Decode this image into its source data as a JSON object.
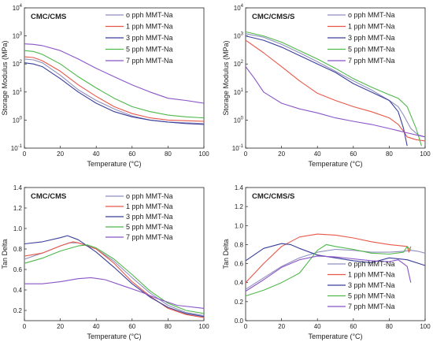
{
  "chart_data": [
    {
      "type": "line",
      "title": "CMC/CMS",
      "xlabel": "Temperature (°C)",
      "ylabel": "Storage Modulus (MPa)",
      "xlim": [
        0,
        100
      ],
      "ylim": [
        0.1,
        10000
      ],
      "yscale": "log",
      "xticks": [
        "0",
        "20",
        "40",
        "60",
        "80",
        "100"
      ],
      "yticks": [
        "10-1",
        "100",
        "101",
        "102",
        "103",
        "104"
      ],
      "legend_position": "top-right",
      "series": [
        {
          "name": "o pph MMT-Na",
          "color": "#8f8fbf",
          "x": [
            0,
            5,
            10,
            20,
            30,
            40,
            50,
            60,
            70,
            80,
            90,
            100
          ],
          "y": [
            150,
            140,
            110,
            40,
            12,
            5,
            2.5,
            1.4,
            1.0,
            0.85,
            0.8,
            0.75
          ]
        },
        {
          "name": "1 pph MMT-Na",
          "color": "#e8584a",
          "x": [
            0,
            5,
            10,
            20,
            30,
            40,
            50,
            60,
            70,
            80,
            90,
            100
          ],
          "y": [
            180,
            170,
            130,
            55,
            18,
            7,
            3,
            1.7,
            1.2,
            1.0,
            0.95,
            0.9
          ]
        },
        {
          "name": "3 pph MMT-Na",
          "color": "#3a3f9a",
          "x": [
            0,
            5,
            10,
            20,
            30,
            40,
            50,
            60,
            70,
            80,
            90,
            100
          ],
          "y": [
            110,
            100,
            80,
            30,
            10,
            4,
            2,
            1.3,
            1.0,
            0.85,
            0.75,
            0.7
          ]
        },
        {
          "name": "5 pph MMT-Na",
          "color": "#4fb84a",
          "x": [
            0,
            5,
            10,
            20,
            30,
            40,
            50,
            60,
            70,
            80,
            90,
            100
          ],
          "y": [
            300,
            280,
            220,
            100,
            35,
            14,
            6,
            3,
            2,
            1.5,
            1.3,
            1.2
          ]
        },
        {
          "name": "7 pph MMT-Na",
          "color": "#8a55c7",
          "x": [
            0,
            5,
            10,
            20,
            30,
            40,
            50,
            60,
            70,
            80,
            90,
            100
          ],
          "y": [
            520,
            500,
            450,
            300,
            150,
            70,
            35,
            18,
            10,
            6,
            5,
            4
          ]
        }
      ]
    },
    {
      "type": "line",
      "title": "CMC/CMS/S",
      "xlabel": "Temperature (°C)",
      "ylabel": "Storage Modulus (MPa)",
      "xlim": [
        0,
        100
      ],
      "ylim": [
        0.1,
        10000
      ],
      "yscale": "log",
      "xticks": [
        "0",
        "20",
        "40",
        "60",
        "80",
        "100"
      ],
      "yticks": [
        "10-1",
        "100",
        "101",
        "102",
        "103",
        "104"
      ],
      "legend_position": "top-right",
      "series": [
        {
          "name": "o pph MMT-Na",
          "color": "#8f8fbf",
          "x": [
            0,
            10,
            20,
            30,
            40,
            50,
            60,
            70,
            80,
            85,
            88,
            92,
            96,
            100
          ],
          "y": [
            1200,
            900,
            500,
            250,
            120,
            55,
            25,
            12,
            5,
            3,
            1.5,
            0.5,
            0.3,
            0.25
          ]
        },
        {
          "name": "1 pph MMT-Na",
          "color": "#e8584a",
          "x": [
            0,
            10,
            20,
            30,
            40,
            50,
            60,
            70,
            80,
            85,
            88,
            90,
            95,
            100
          ],
          "y": [
            700,
            250,
            80,
            25,
            9,
            5,
            3,
            2,
            1.2,
            0.7,
            0.4,
            0.25,
            0.2,
            0.18
          ]
        },
        {
          "name": "3 pph MMT-Na",
          "color": "#3a3f9a",
          "x": [
            0,
            10,
            20,
            30,
            40,
            50,
            60,
            70,
            80,
            85,
            88,
            90
          ],
          "y": [
            1000,
            700,
            400,
            200,
            100,
            50,
            20,
            10,
            5,
            2,
            0.5,
            0.12
          ]
        },
        {
          "name": "5 pph MMT-Na",
          "color": "#4fb84a",
          "x": [
            0,
            10,
            20,
            30,
            40,
            50,
            60,
            70,
            80,
            85,
            90,
            95,
            98
          ],
          "y": [
            1400,
            1000,
            600,
            300,
            150,
            70,
            30,
            15,
            8,
            6,
            3,
            0.5,
            0.12
          ]
        },
        {
          "name": "7 pph MMT-Na",
          "color": "#8a55c7",
          "x": [
            0,
            5,
            10,
            20,
            30,
            40,
            50,
            60,
            70,
            80,
            90,
            100
          ],
          "y": [
            80,
            30,
            10,
            4,
            2.5,
            1.8,
            1.2,
            0.9,
            0.7,
            0.5,
            0.35,
            0.25
          ]
        }
      ]
    },
    {
      "type": "line",
      "title": "CMC/CMS",
      "xlabel": "Temperature (°C)",
      "ylabel": "Tan Delta",
      "xlim": [
        0,
        100
      ],
      "ylim": [
        0.1,
        1.4
      ],
      "xticks": [
        "0",
        "20",
        "40",
        "60",
        "80",
        "100"
      ],
      "yticks": [
        "0.2",
        "0.4",
        "0.6",
        "0.8",
        "1.0",
        "1.2",
        "1.4"
      ],
      "legend_position": "top-right",
      "series": [
        {
          "name": "o pph MMT-Na",
          "color": "#8f8fbf",
          "x": [
            0,
            10,
            20,
            25,
            30,
            40,
            50,
            60,
            70,
            80,
            90,
            100
          ],
          "y": [
            0.7,
            0.76,
            0.83,
            0.86,
            0.86,
            0.8,
            0.68,
            0.52,
            0.37,
            0.25,
            0.18,
            0.15
          ]
        },
        {
          "name": "1 pph MMT-Na",
          "color": "#e8584a",
          "x": [
            0,
            10,
            20,
            27,
            30,
            40,
            50,
            60,
            70,
            80,
            90,
            100
          ],
          "y": [
            0.73,
            0.76,
            0.83,
            0.87,
            0.86,
            0.8,
            0.66,
            0.48,
            0.34,
            0.22,
            0.16,
            0.13
          ]
        },
        {
          "name": "3 pph MMT-Na",
          "color": "#3a3f9a",
          "x": [
            0,
            10,
            20,
            24,
            30,
            40,
            50,
            60,
            70,
            80,
            90,
            100
          ],
          "y": [
            0.85,
            0.87,
            0.91,
            0.93,
            0.89,
            0.77,
            0.62,
            0.46,
            0.33,
            0.23,
            0.17,
            0.14
          ]
        },
        {
          "name": "5 pph MMT-Na",
          "color": "#4fb84a",
          "x": [
            0,
            10,
            20,
            30,
            35,
            40,
            50,
            60,
            70,
            80,
            90,
            100
          ],
          "y": [
            0.66,
            0.71,
            0.78,
            0.83,
            0.84,
            0.81,
            0.7,
            0.55,
            0.39,
            0.27,
            0.2,
            0.17
          ]
        },
        {
          "name": "7 pph MMT-Na",
          "color": "#8a55c7",
          "x": [
            0,
            10,
            20,
            30,
            37,
            45,
            55,
            65,
            75,
            85,
            100
          ],
          "y": [
            0.46,
            0.46,
            0.48,
            0.51,
            0.52,
            0.5,
            0.44,
            0.38,
            0.31,
            0.25,
            0.22
          ]
        }
      ]
    },
    {
      "type": "line",
      "title": "CMC/CMS/S",
      "xlabel": "Temperature (°C)",
      "ylabel": "Tan Delta",
      "xlim": [
        0,
        100
      ],
      "ylim": [
        0,
        1.4
      ],
      "xticks": [
        "0",
        "20",
        "40",
        "60",
        "80",
        "100"
      ],
      "yticks": [
        "0.0",
        "0.2",
        "0.4",
        "0.6",
        "0.8",
        "1.0",
        "1.2",
        "1.4"
      ],
      "legend_position": "bottom-right",
      "series": [
        {
          "name": "o pph MMT-Na",
          "color": "#8f8fbf",
          "x": [
            0,
            10,
            20,
            30,
            40,
            50,
            60,
            70,
            80,
            88,
            92,
            96,
            100
          ],
          "y": [
            0.33,
            0.45,
            0.57,
            0.66,
            0.72,
            0.75,
            0.74,
            0.72,
            0.72,
            0.73,
            0.74,
            0.73,
            0.71
          ]
        },
        {
          "name": "1 pph MMT-Na",
          "color": "#e8584a",
          "x": [
            0,
            10,
            20,
            30,
            40,
            50,
            60,
            70,
            80,
            90,
            91,
            92
          ],
          "y": [
            0.4,
            0.6,
            0.78,
            0.88,
            0.91,
            0.9,
            0.87,
            0.83,
            0.8,
            0.78,
            0.72,
            0.78
          ]
        },
        {
          "name": "3 pph MMT-Na",
          "color": "#3a3f9a",
          "x": [
            0,
            10,
            20,
            25,
            30,
            40,
            50,
            60,
            70,
            80,
            90,
            100
          ],
          "y": [
            0.63,
            0.76,
            0.81,
            0.8,
            0.76,
            0.69,
            0.66,
            0.63,
            0.61,
            0.66,
            0.64,
            0.58
          ]
        },
        {
          "name": "5 pph MMT-Na",
          "color": "#4fb84a",
          "x": [
            0,
            10,
            20,
            30,
            40,
            45,
            50,
            60,
            70,
            80,
            88,
            90,
            92
          ],
          "y": [
            0.26,
            0.32,
            0.4,
            0.5,
            0.74,
            0.8,
            0.78,
            0.75,
            0.71,
            0.7,
            0.72,
            0.78,
            0.74
          ]
        },
        {
          "name": "7 pph MMT-Na",
          "color": "#8a55c7",
          "x": [
            0,
            10,
            20,
            30,
            40,
            50,
            60,
            70,
            80,
            85,
            90,
            92
          ],
          "y": [
            0.31,
            0.43,
            0.56,
            0.64,
            0.68,
            0.67,
            0.65,
            0.63,
            0.62,
            0.64,
            0.57,
            0.4
          ]
        }
      ]
    }
  ]
}
